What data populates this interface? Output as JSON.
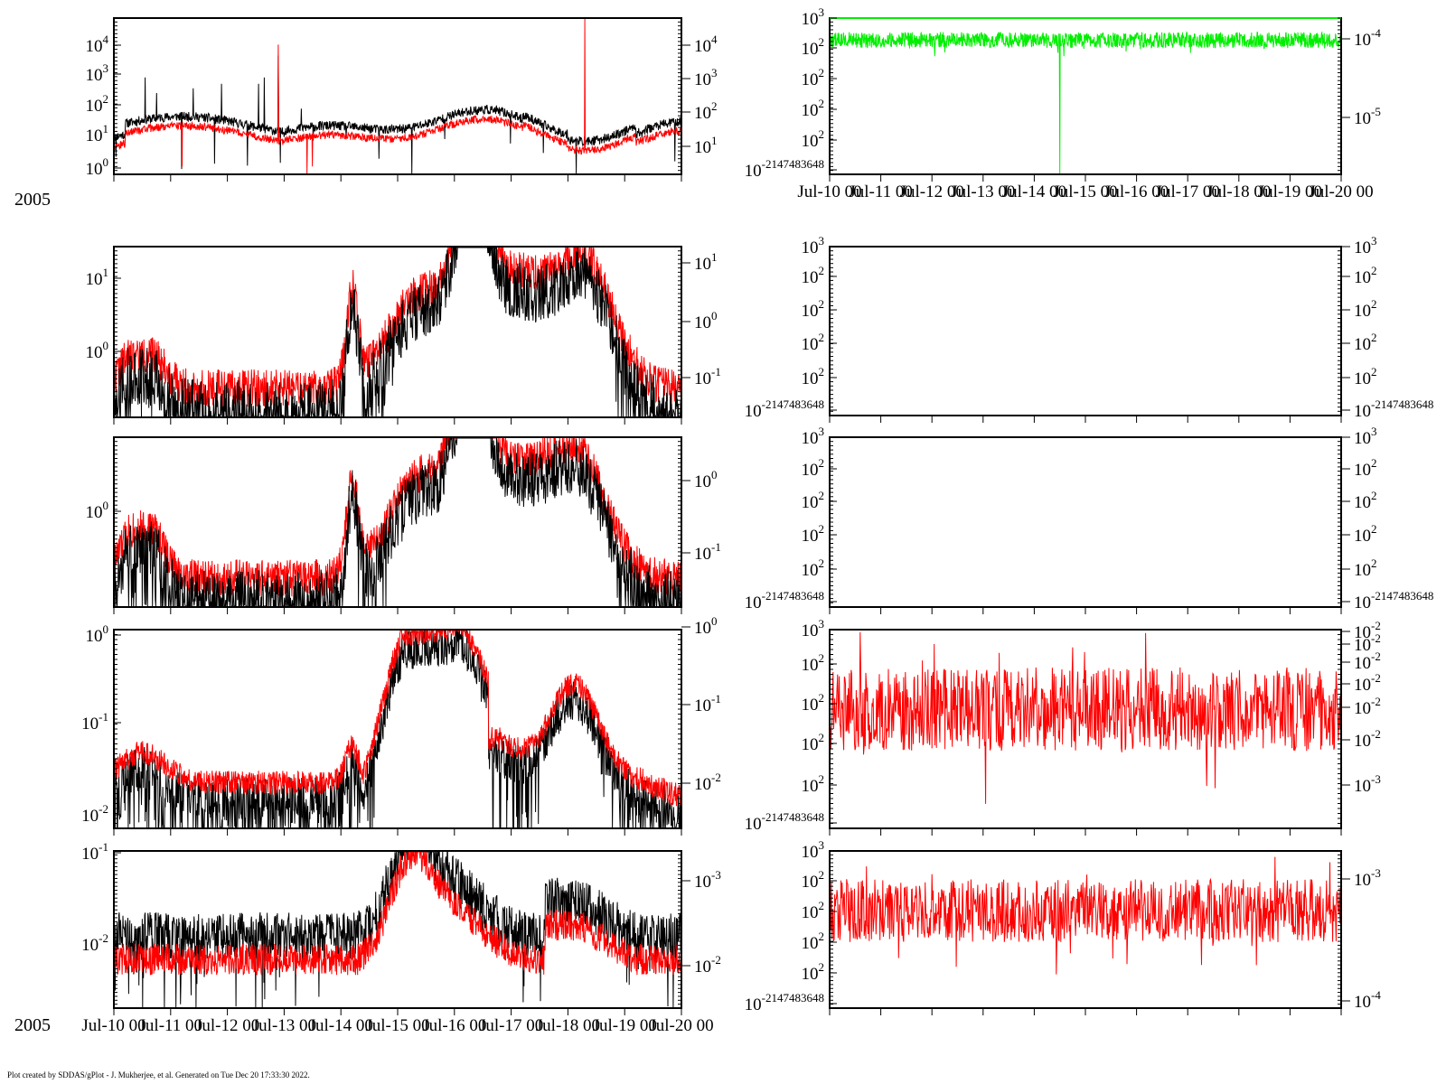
{
  "credit": "Plot created by SDDAS/gPlot - J. Mukherjee, et al.  Generated on Tue Dec 20 17:33:30 2022.",
  "colors": {
    "black": "#000000",
    "red": "#ff0000",
    "green": "#00ee00"
  },
  "chart_data": [
    {
      "id": "L1",
      "type": "line",
      "yscale": "log",
      "left_ticks": [
        {
          "b": "10",
          "e": "0"
        },
        {
          "b": "10",
          "e": "1"
        },
        {
          "b": "10",
          "e": "2"
        },
        {
          "b": "10",
          "e": "3"
        },
        {
          "b": "10",
          "e": "4"
        }
      ],
      "right_ticks": [
        {
          "b": "10",
          "e": "1"
        },
        {
          "b": "10",
          "e": "2"
        },
        {
          "b": "10",
          "e": "3"
        },
        {
          "b": "10",
          "e": "4"
        }
      ],
      "year": "2005",
      "show_xlabels": false,
      "series": [
        {
          "color": "black"
        },
        {
          "color": "red"
        }
      ]
    },
    {
      "id": "L2",
      "type": "line",
      "yscale": "log",
      "left_ticks": [
        {
          "b": "10",
          "e": "0"
        },
        {
          "b": "10",
          "e": "1"
        }
      ],
      "right_ticks": [
        {
          "b": "10",
          "e": "-1"
        },
        {
          "b": "10",
          "e": "0"
        },
        {
          "b": "10",
          "e": "1"
        }
      ],
      "series": [
        {
          "color": "red"
        },
        {
          "color": "black"
        }
      ]
    },
    {
      "id": "L3",
      "type": "line",
      "yscale": "log",
      "left_ticks": [
        {
          "b": "10",
          "e": "0"
        }
      ],
      "right_ticks": [
        {
          "b": "10",
          "e": "-1"
        },
        {
          "b": "10",
          "e": "0"
        }
      ],
      "series": [
        {
          "color": "red"
        },
        {
          "color": "black"
        }
      ]
    },
    {
      "id": "L4",
      "type": "line",
      "yscale": "log",
      "left_ticks": [
        {
          "b": "10",
          "e": "-2"
        },
        {
          "b": "10",
          "e": "-1"
        },
        {
          "b": "10",
          "e": "0"
        }
      ],
      "right_ticks": [
        {
          "b": "10",
          "e": "-2"
        },
        {
          "b": "10",
          "e": "-1"
        },
        {
          "b": "10",
          "e": "0"
        }
      ],
      "series": [
        {
          "color": "black"
        },
        {
          "color": "red"
        }
      ]
    },
    {
      "id": "L5",
      "type": "line",
      "yscale": "log",
      "left_ticks": [
        {
          "b": "10",
          "e": "-2"
        },
        {
          "b": "10",
          "e": "-1"
        }
      ],
      "right_ticks": [
        {
          "b": "10",
          "e": "-2"
        },
        {
          "b": "10",
          "e": "-3"
        }
      ],
      "year": "2005",
      "show_xlabels": true,
      "series": [
        {
          "color": "black"
        },
        {
          "color": "red"
        }
      ]
    },
    {
      "id": "R1",
      "type": "line",
      "yscale": "log",
      "left_ticks": [
        {
          "b": "10",
          "e": "-2147483648"
        },
        {
          "b": "10",
          "e": "2"
        },
        {
          "b": "10",
          "e": "2"
        },
        {
          "b": "10",
          "e": "2"
        },
        {
          "b": "10",
          "e": "2"
        },
        {
          "b": "10",
          "e": "3"
        }
      ],
      "right_ticks": [
        {
          "b": "10",
          "e": "-5"
        },
        {
          "b": "10",
          "e": "-4"
        }
      ],
      "show_xlabels": true,
      "series": [
        {
          "color": "green"
        }
      ]
    },
    {
      "id": "R2",
      "type": "line",
      "yscale": "log",
      "left_ticks": [
        {
          "b": "10",
          "e": "-2147483648"
        },
        {
          "b": "10",
          "e": "2"
        },
        {
          "b": "10",
          "e": "2"
        },
        {
          "b": "10",
          "e": "2"
        },
        {
          "b": "10",
          "e": "2"
        },
        {
          "b": "10",
          "e": "3"
        }
      ],
      "right_ticks": [
        {
          "b": "10",
          "e": "-2147483648"
        },
        {
          "b": "10",
          "e": "2"
        },
        {
          "b": "10",
          "e": "2"
        },
        {
          "b": "10",
          "e": "2"
        },
        {
          "b": "10",
          "e": "2"
        },
        {
          "b": "10",
          "e": "3"
        }
      ],
      "series": []
    },
    {
      "id": "R3",
      "type": "line",
      "yscale": "log",
      "left_ticks": [
        {
          "b": "10",
          "e": "-2147483648"
        },
        {
          "b": "10",
          "e": "2"
        },
        {
          "b": "10",
          "e": "2"
        },
        {
          "b": "10",
          "e": "2"
        },
        {
          "b": "10",
          "e": "2"
        },
        {
          "b": "10",
          "e": "3"
        }
      ],
      "right_ticks": [
        {
          "b": "10",
          "e": "-2147483648"
        },
        {
          "b": "10",
          "e": "2"
        },
        {
          "b": "10",
          "e": "2"
        },
        {
          "b": "10",
          "e": "2"
        },
        {
          "b": "10",
          "e": "2"
        },
        {
          "b": "10",
          "e": "3"
        }
      ],
      "series": []
    },
    {
      "id": "R4",
      "type": "line",
      "yscale": "log",
      "left_ticks": [
        {
          "b": "10",
          "e": "-2147483648"
        },
        {
          "b": "10",
          "e": "2"
        },
        {
          "b": "10",
          "e": "2"
        },
        {
          "b": "10",
          "e": "2"
        },
        {
          "b": "10",
          "e": "2"
        },
        {
          "b": "10",
          "e": "3"
        }
      ],
      "right_ticks": [
        {
          "b": "10",
          "e": "-3"
        },
        {
          "b": "10",
          "e": "-2"
        },
        {
          "b": "10",
          "e": "-2"
        },
        {
          "b": "10",
          "e": "-2"
        },
        {
          "b": "10",
          "e": "-2"
        },
        {
          "b": "10",
          "e": "-2"
        },
        {
          "b": "10",
          "e": "-2"
        }
      ],
      "series": [
        {
          "color": "red"
        }
      ]
    },
    {
      "id": "R5",
      "type": "line",
      "yscale": "log",
      "left_ticks": [
        {
          "b": "10",
          "e": "-2147483648"
        },
        {
          "b": "10",
          "e": "2"
        },
        {
          "b": "10",
          "e": "2"
        },
        {
          "b": "10",
          "e": "2"
        },
        {
          "b": "10",
          "e": "2"
        },
        {
          "b": "10",
          "e": "3"
        }
      ],
      "right_ticks": [
        {
          "b": "10",
          "e": "-4"
        },
        {
          "b": "10",
          "e": "-3"
        }
      ],
      "series": [
        {
          "color": "red"
        }
      ]
    }
  ],
  "x_axis": {
    "labels": [
      "Jul-10 00",
      "Jul-11 00",
      "Jul-12 00",
      "Jul-13 00",
      "Jul-14 00",
      "Jul-15 00",
      "Jul-16 00",
      "Jul-17 00",
      "Jul-18 00",
      "Jul-19 00",
      "Jul-20 00"
    ]
  }
}
